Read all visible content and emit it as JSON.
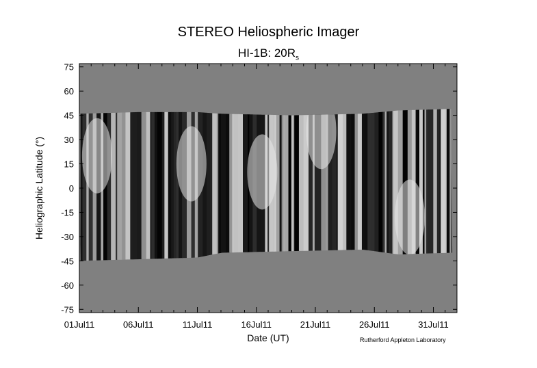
{
  "chart_data": {
    "type": "heatmap",
    "title": "STEREO Heliospheric Imager",
    "subtitle_main": "HI-1B: 20R",
    "subtitle_sub": "s",
    "xlabel": "Date (UT)",
    "ylabel": "Heliographic Latitude (°)",
    "xlim": [
      "01Jul11",
      "02Aug11"
    ],
    "ylim": [
      -77,
      77
    ],
    "x_ticks": [
      "01Jul11",
      "06Jul11",
      "11Jul11",
      "16Jul11",
      "21Jul11",
      "26Jul11",
      "31Jul11"
    ],
    "y_ticks": [
      75,
      60,
      45,
      30,
      15,
      0,
      -15,
      -30,
      -45,
      -60,
      -75
    ],
    "colormap": "grayscale",
    "background_color": "#808080",
    "coverage_bounds": {
      "day": [
        0,
        5,
        10,
        12,
        18,
        24,
        27,
        31.5
      ],
      "lat_upper": [
        46,
        47,
        47,
        46,
        45,
        46,
        48,
        49
      ],
      "lat_lower": [
        -45,
        -44,
        -43,
        -40,
        -39,
        -38,
        -41,
        -40
      ]
    },
    "bright_features": [
      {
        "day": 1.5,
        "lat": 20,
        "note": "bright band"
      },
      {
        "day": 9.5,
        "lat": 15,
        "note": "bright band"
      },
      {
        "day": 15.5,
        "lat": 10,
        "note": "bright band"
      },
      {
        "day": 20.5,
        "lat": 35,
        "note": "bright band"
      },
      {
        "day": 28,
        "lat": -18,
        "note": "bright band"
      }
    ]
  },
  "credit": "Rutherford Appleton Laboratory"
}
